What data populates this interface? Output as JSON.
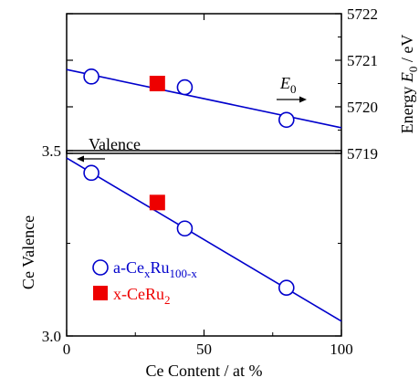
{
  "chart_data": [
    {
      "type": "scatter",
      "panel": "top",
      "xlim": [
        0,
        100
      ],
      "ylim": [
        5719,
        5722
      ],
      "yticks": [
        5719,
        5720,
        5721,
        5722
      ],
      "ylabel": "Energy  E0  / eV",
      "ylabel_parts": {
        "prefix": "Energy  ",
        "sym": "E",
        "sub": "0",
        "suffix": "  / eV"
      },
      "series": [
        {
          "name": "a-CexRu100-x",
          "marker": "open-circle",
          "color": "#0000cc",
          "points": [
            {
              "x": 9,
              "y": 5720.65
            },
            {
              "x": 43,
              "y": 5720.42
            },
            {
              "x": 80,
              "y": 5719.72
            }
          ]
        },
        {
          "name": "x-CeRu2",
          "marker": "filled-square",
          "color": "#ee0000",
          "points": [
            {
              "x": 33,
              "y": 5720.5
            }
          ]
        }
      ],
      "fit_line": {
        "color": "#0000cc",
        "points": [
          {
            "x": 0,
            "y": 5720.8
          },
          {
            "x": 100,
            "y": 5719.55
          }
        ]
      },
      "annotation": {
        "sym": "E",
        "sub": "0",
        "arrow": "right"
      }
    },
    {
      "type": "scatter",
      "panel": "bottom",
      "xlim": [
        0,
        100
      ],
      "ylim": [
        3.0,
        3.5
      ],
      "yticks": [
        3.0,
        3.5
      ],
      "ytick_labels": [
        "3.0",
        "3.5"
      ],
      "xticks": [
        0,
        50,
        100
      ],
      "xtick_labels": [
        "0",
        "50",
        "100"
      ],
      "xlabel": "Ce Content / at %",
      "ylabel": "Ce Valence",
      "series": [
        {
          "name": "a-CexRu100-x",
          "marker": "open-circle",
          "color": "#0000cc",
          "points": [
            {
              "x": 9,
              "y": 3.44
            },
            {
              "x": 43,
              "y": 3.29
            },
            {
              "x": 80,
              "y": 3.13
            }
          ]
        },
        {
          "name": "x-CeRu2",
          "marker": "filled-square",
          "color": "#ee0000",
          "points": [
            {
              "x": 33,
              "y": 3.36
            }
          ]
        }
      ],
      "fit_line": {
        "color": "#0000cc",
        "points": [
          {
            "x": 0,
            "y": 3.48
          },
          {
            "x": 100,
            "y": 3.04
          }
        ]
      },
      "annotation": {
        "text": "Valence",
        "arrow": "left"
      },
      "legend": {
        "placement": "lower-left",
        "entries": [
          {
            "base": "a-Ce",
            "sub1": "x",
            "mid": "Ru",
            "sub2": "100-x",
            "color": "#0000cc",
            "marker": "open-circle"
          },
          {
            "base": "x-CeRu",
            "sub1": "2",
            "color": "#ee0000",
            "marker": "filled-square"
          }
        ]
      }
    }
  ]
}
